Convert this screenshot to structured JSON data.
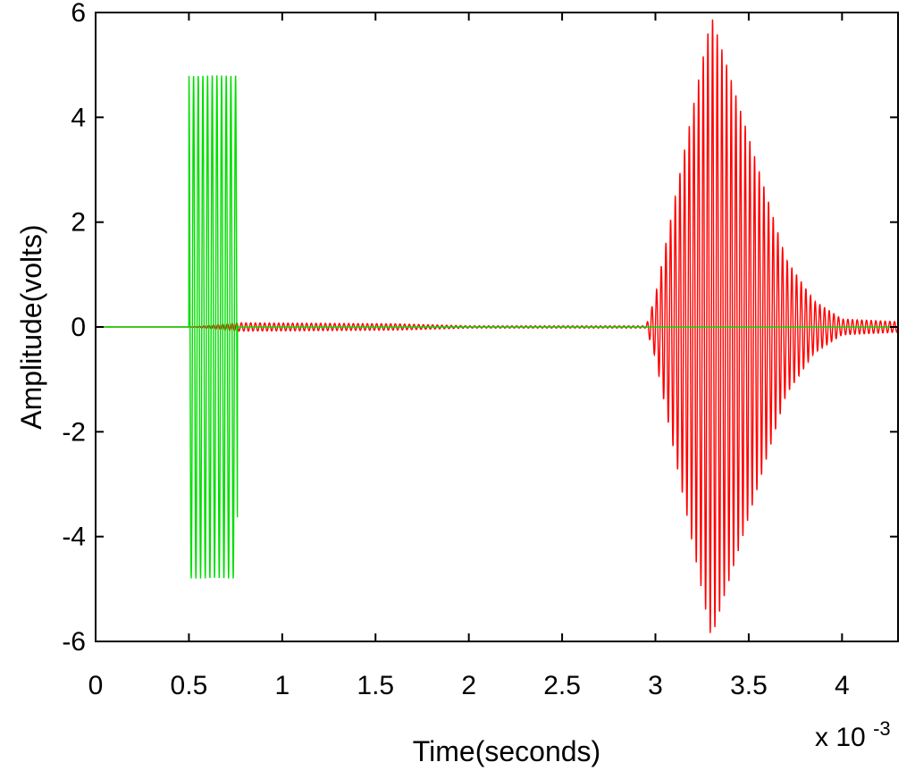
{
  "chart_data": {
    "type": "line",
    "title": "",
    "xlabel": "Time(seconds)",
    "ylabel": "Amplitude(volts)",
    "x_multiplier_label": "x 10",
    "x_multiplier_exponent": "-3",
    "xlim": [
      0,
      4.3
    ],
    "ylim": [
      -6,
      6
    ],
    "xticks": [
      0,
      0.5,
      1,
      1.5,
      2,
      2.5,
      3,
      3.5,
      4
    ],
    "xtick_labels": [
      "0",
      "0.5",
      "1",
      "1.5",
      "2",
      "2.5",
      "3",
      "3.5",
      "4"
    ],
    "yticks": [
      -6,
      -4,
      -2,
      0,
      2,
      4,
      6
    ],
    "ytick_labels": [
      "-6",
      "-4",
      "-2",
      "0",
      "2",
      "4",
      "6"
    ],
    "grid": false,
    "legend": "none",
    "series": [
      {
        "color": "#00dd00",
        "description_points": [
          {
            "x": 0.5,
            "y_envelope": 4.8
          },
          {
            "x": 0.75,
            "y_envelope": 4.75
          },
          {
            "x": 0.76,
            "y_envelope": 0.0
          },
          {
            "x": 4.3,
            "y_envelope": 0.0
          }
        ],
        "burst": {
          "start": 0.5,
          "end": 0.76,
          "amplitude": 4.8,
          "frequency_khz": 40
        }
      },
      {
        "color": "#ff0000",
        "envelope_points": [
          {
            "x": 0.0,
            "a": 0.0
          },
          {
            "x": 0.5,
            "a": 0.0
          },
          {
            "x": 0.76,
            "a": 0.08
          },
          {
            "x": 1.6,
            "a": 0.06
          },
          {
            "x": 2.0,
            "a": 0.02
          },
          {
            "x": 2.95,
            "a": 0.02
          },
          {
            "x": 3.0,
            "a": 0.6
          },
          {
            "x": 3.3,
            "a": 5.95
          },
          {
            "x": 3.7,
            "a": 1.3
          },
          {
            "x": 3.85,
            "a": 0.5
          },
          {
            "x": 4.0,
            "a": 0.15
          },
          {
            "x": 4.3,
            "a": 0.1
          }
        ],
        "frequency_khz": 40
      }
    ]
  }
}
